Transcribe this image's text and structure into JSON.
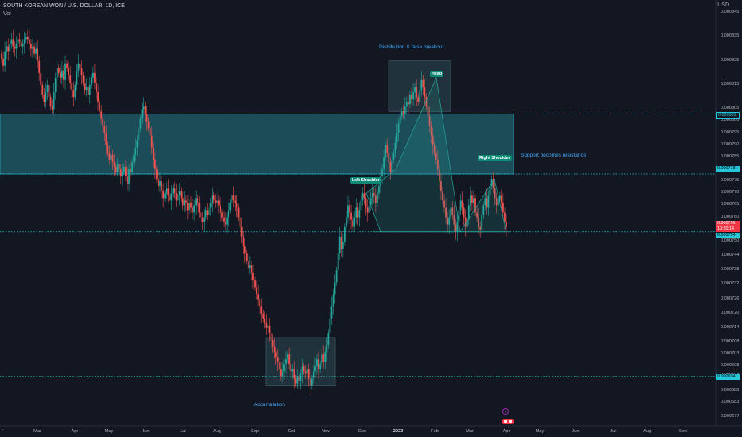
{
  "header": {
    "symbol_line": "SOUTH KOREAN WON / U.S. DOLLAR, 1D, ICE",
    "indicator": "Vol",
    "currency": "USD"
  },
  "chart_data": {
    "type": "candlestick",
    "title": "SOUTH KOREAN WON / U.S. DOLLAR, 1D, ICE",
    "y_axis": {
      "unit": "USD",
      "ticks": [
        "0.000845",
        "0.000835",
        "0.000825",
        "0.000815",
        "0.000805",
        "0.000800",
        "0.000795",
        "0.000790",
        "0.000785",
        "0.000780",
        "0.000775",
        "0.000770",
        "0.000765",
        "0.000760",
        "0.000756",
        "0.000750",
        "0.000744",
        "0.000738",
        "0.000732",
        "0.000726",
        "0.000720",
        "0.000714",
        "0.000708",
        "0.000703",
        "0.000698",
        "0.000694",
        "0.000688",
        "0.000683",
        "0.000677"
      ],
      "range": [
        0.000674,
        0.000849
      ]
    },
    "x_axis": {
      "ticks": [
        "Feb",
        "Mar",
        "Apr",
        "May",
        "Jun",
        "Jul",
        "Aug",
        "Sep",
        "Oct",
        "Nov",
        "Dec",
        "2023",
        "Feb",
        "Mar",
        "Apr",
        "May",
        "Jun",
        "Jul",
        "Aug",
        "Sep"
      ],
      "year_tick": "2023"
    },
    "price_labels": [
      {
        "value": "0.000803",
        "style": "cyan-box"
      },
      {
        "value": "0.000778",
        "style": "cyan"
      },
      {
        "value": "0.000756",
        "style": "red"
      },
      {
        "value": "13:20:14",
        "style": "red"
      },
      {
        "value": "0.000754",
        "style": "cyan"
      },
      {
        "value": "0.000694",
        "style": "cyan"
      }
    ],
    "horizontal_levels": [
      0.000803,
      0.000778,
      0.000754,
      0.000694
    ],
    "zones": [
      {
        "name": "resistance-zone",
        "from": "Jan",
        "to": "Mar 2023",
        "low": 0.000778,
        "high": 0.000803
      },
      {
        "name": "accumulation-box",
        "from": "Sep",
        "to": "Nov",
        "low": 0.00069,
        "high": 0.00071
      },
      {
        "name": "head-box",
        "from": "Jan 2023",
        "to": "Feb 2023",
        "low": 0.000804,
        "high": 0.000825
      }
    ],
    "pattern_points": [
      {
        "label": "Left Shoulder",
        "date": "Dec",
        "price": 0.00077
      },
      {
        "label": "Head",
        "date": "Feb 2023",
        "price": 0.000818
      },
      {
        "label": "Right Shoulder",
        "date": "Mar 2023",
        "price": 0.000776
      }
    ],
    "annotations": [
      "Distribution & false breakout",
      "Support becomes resistance",
      "Accumulation"
    ],
    "close_series": [
      0.000826,
      0.000823,
      0.000829,
      0.000831,
      0.000829,
      0.000832,
      0.000834,
      0.000831,
      0.00083,
      0.000832,
      0.000834,
      0.000833,
      0.000831,
      0.000832,
      0.000834,
      0.000835,
      0.000834,
      0.000832,
      0.00083,
      0.000831,
      0.000828,
      0.00083,
      0.000825,
      0.00082,
      0.000815,
      0.000811,
      0.000808,
      0.000812,
      0.000815,
      0.00081,
      0.000806,
      0.000805,
      0.000812,
      0.000818,
      0.000822,
      0.00082,
      0.000818,
      0.000821,
      0.000817,
      0.000824,
      0.000822,
      0.000819,
      0.000816,
      0.000813,
      0.00081,
      0.000815,
      0.000821,
      0.000824,
      0.000822,
      0.000819,
      0.000816,
      0.000813,
      0.000814,
      0.000811,
      0.000815,
      0.000818,
      0.00082,
      0.000816,
      0.000812,
      0.000808,
      0.000804,
      0.000801,
      0.000798,
      0.000795,
      0.00079,
      0.000787,
      0.000784,
      0.000786,
      0.000783,
      0.000781,
      0.000779,
      0.000782,
      0.00078,
      0.000777,
      0.000779,
      0.000781,
      0.000777,
      0.000774,
      0.00078,
      0.000779,
      0.000783,
      0.000786,
      0.000789,
      0.000792,
      0.000797,
      0.000801,
      0.000805,
      0.000806,
      0.000803,
      0.0008,
      0.000797,
      0.000794,
      0.000789,
      0.000784,
      0.00078,
      0.000776,
      0.000773,
      0.000775,
      0.000771,
      0.000768,
      0.00077,
      0.000772,
      0.000769,
      0.000767,
      0.00077,
      0.000772,
      0.00077,
      0.000767,
      0.000769,
      0.000771,
      0.000768,
      0.000765,
      0.000767,
      0.000766,
      0.000763,
      0.000766,
      0.000764,
      0.000762,
      0.000765,
      0.000768,
      0.000766,
      0.000762,
      0.00076,
      0.000758,
      0.00076,
      0.000763,
      0.000761,
      0.000764,
      0.000766,
      0.000769,
      0.000767,
      0.000766,
      0.000767,
      0.000765,
      0.000762,
      0.00076,
      0.000758,
      0.000757,
      0.00076,
      0.000763,
      0.000766,
      0.000769,
      0.000767,
      0.000766,
      0.000764,
      0.00076,
      0.000756,
      0.000752,
      0.000748,
      0.000745,
      0.000742,
      0.000739,
      0.00074,
      0.000737,
      0.000734,
      0.000731,
      0.000728,
      0.000726,
      0.000723,
      0.00072,
      0.000718,
      0.000716,
      0.000714,
      0.000715,
      0.000712,
      0.000709,
      0.000706,
      0.000704,
      0.000702,
      0.0007,
      0.000697,
      0.000694,
      0.000696,
      0.000699,
      0.000701,
      0.000703,
      0.000699,
      0.000696,
      0.000697,
      0.000693,
      0.000691,
      0.000694,
      0.000692,
      0.000695,
      0.000698,
      0.000696,
      0.000695,
      0.000697,
      0.000693,
      0.00069,
      0.000693,
      0.000696,
      0.000698,
      0.000701,
      0.000697,
      0.000699,
      0.000703,
      0.0007,
      0.000704,
      0.000707,
      0.000712,
      0.000718,
      0.000723,
      0.000728,
      0.000733,
      0.000738,
      0.000745,
      0.000752,
      0.000747,
      0.00075,
      0.000756,
      0.00076,
      0.000765,
      0.000762,
      0.000759,
      0.000756,
      0.00076,
      0.000764,
      0.00076,
      0.000763,
      0.000767,
      0.00077,
      0.000768,
      0.000764,
      0.000762,
      0.000765,
      0.000768,
      0.00077,
      0.000769,
      0.000766,
      0.00077,
      0.000773,
      0.000777,
      0.00078,
      0.000785,
      0.00079,
      0.000787,
      0.000783,
      0.000779,
      0.000784,
      0.000787,
      0.000791,
      0.000795,
      0.000799,
      0.000802,
      0.000804,
      0.000803,
      0.000806,
      0.000808,
      0.000807,
      0.000811,
      0.000809,
      0.000812,
      0.000814,
      0.00081,
      0.000808,
      0.000813,
      0.000817,
      0.000814,
      0.00081,
      0.000806,
      0.000802,
      0.000798,
      0.000794,
      0.00079,
      0.000787,
      0.000784,
      0.00078,
      0.000775,
      0.000771,
      0.000767,
      0.000764,
      0.00076,
      0.000757,
      0.00076,
      0.000764,
      0.000761,
      0.000757,
      0.000754,
      0.000758,
      0.000763,
      0.000767,
      0.000764,
      0.00076,
      0.000756,
      0.000759,
      0.000765,
      0.000769,
      0.000766,
      0.000768,
      0.000762,
      0.00076,
      0.000756,
      0.000755,
      0.000761,
      0.000765,
      0.000768,
      0.000764,
      0.000769,
      0.000773,
      0.000776,
      0.000772,
      0.000768,
      0.000765,
      0.000767,
      0.000769,
      0.000766,
      0.000762,
      0.000758,
      0.000756
    ]
  },
  "colors": {
    "background": "#131722",
    "up": "#26a69a",
    "down": "#ef5350",
    "zone_fill": "#1f5f6b",
    "zone_line": "#26c6da",
    "box_fill": "#2c4a52",
    "annotation": "#42a5f5",
    "label_bg": "#0c8a76"
  },
  "icons": [
    "tradingview-logo-icon",
    "events-flag-icon"
  ]
}
